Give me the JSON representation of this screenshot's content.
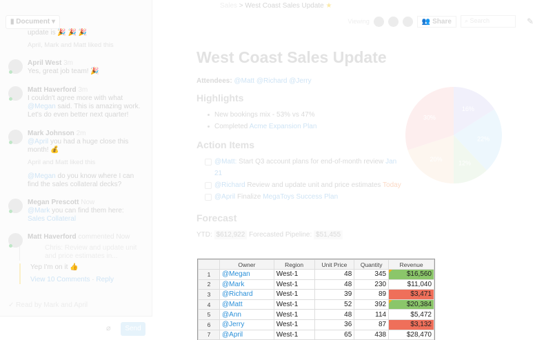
{
  "sidebar": {
    "doc_button": "Document",
    "messages": [
      {
        "truncated": "update is 🎉 🎉 🎉",
        "liked": "April, Mark and Matt liked this"
      },
      {
        "name": "April West",
        "time": "3m",
        "text": "Yes, great job team! 🎉"
      },
      {
        "name": "Matt Haverford",
        "time": "3m",
        "mention": "@Megan",
        "text": "I couldn't agree more with what",
        "text2": "said. This is amazing work. Let's do even better next quarter!"
      },
      {
        "name": "Mark Johnson",
        "time": "2m",
        "mention": "@April",
        "text": "you had a huge close this month! 💰",
        "liked": "April and Matt liked this"
      },
      {
        "mention": "@Megan",
        "text": "do you know where I can find the sales collateral decks?"
      },
      {
        "name": "Megan Prescott",
        "time": "Now",
        "mention": "@Mark",
        "text": "you can find them here:",
        "link": "Sales Collateral"
      },
      {
        "name": "Matt Haverford",
        "action": "commented",
        "time": "Now",
        "quote": "Chris: Review and update unit and price estimates in...",
        "reply": "Yep I'm on it 👍",
        "view": "View 10 Comments",
        "reply_link": "Reply"
      }
    ],
    "read_by": "Read by Mark and April",
    "send": "Send"
  },
  "header": {
    "crumb_parent": "Sales",
    "crumb_sep": ">",
    "title": "West Coast Sales Update",
    "viewing": "Viewing",
    "share": "Share",
    "search_placeholder": "Search"
  },
  "doc": {
    "title": "West Coast Sales Update",
    "attendees_label": "Attendees:",
    "attendees": "@Matt @Richard @Jerry",
    "highlights_heading": "Highlights",
    "highlights": [
      "New bookings mix - 53% vs 47%"
    ],
    "completed": "Completed",
    "completed_link": "Acme Expansion Plan",
    "actions_heading": "Action Items",
    "actions": [
      {
        "mention": "@Matt:",
        "text": "Start Q3 account plans for end-of-month review",
        "due": "Jan 21"
      },
      {
        "mention": "@Richard",
        "text": "Review and update unit and price estimates",
        "due": "Today"
      },
      {
        "mention": "@April",
        "text": "Finalize",
        "link": "MegaToys Success Plan"
      }
    ],
    "forecast_heading": "Forecast",
    "ytd_label": "YTD:",
    "ytd": "$612,922",
    "pipeline_label": "Forecasted Pipeline:",
    "pipeline": "$51,455"
  },
  "chart_data": {
    "type": "pie",
    "values": [
      16,
      22,
      12,
      20,
      30
    ],
    "labels": [
      "16%",
      "22%",
      "12%",
      "20%",
      "30%"
    ],
    "colors": [
      "#f1f0fb",
      "#edf7fd",
      "#f1f8ef",
      "#fdf6ef",
      "#fdeeee"
    ]
  },
  "sheet": {
    "headers": [
      "",
      "Owner",
      "Region",
      "Unit Price",
      "Quantity",
      "Revenue"
    ],
    "rows": [
      [
        "1",
        "@Megan",
        "West-1",
        "48",
        "345",
        "$16,560",
        "green"
      ],
      [
        "2",
        "@Mark",
        "West-1",
        "48",
        "230",
        "$11,040",
        ""
      ],
      [
        "3",
        "@Richard",
        "West-1",
        "39",
        "89",
        "$3,471",
        "red"
      ],
      [
        "4",
        "@Matt",
        "West-1",
        "52",
        "392",
        "$20,384",
        "green"
      ],
      [
        "5",
        "@Ann",
        "West-1",
        "48",
        "114",
        "$5,472",
        ""
      ],
      [
        "6",
        "@Jerry",
        "West-1",
        "36",
        "87",
        "$3,132",
        "red"
      ],
      [
        "7",
        "@April",
        "West-1",
        "65",
        "438",
        "$28,470",
        ""
      ]
    ]
  }
}
